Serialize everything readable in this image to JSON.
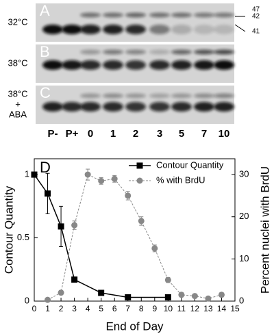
{
  "blot": {
    "panels": [
      {
        "letter": "A",
        "condition": [
          "32°C"
        ]
      },
      {
        "letter": "B",
        "condition": [
          "38°C"
        ]
      },
      {
        "letter": "C",
        "condition": [
          "38°C",
          "+",
          "ABA"
        ]
      }
    ],
    "markers": [
      "47",
      "42",
      "41"
    ],
    "lanes": [
      "P-",
      "P+",
      "0",
      "1",
      "2",
      "3",
      "5",
      "7",
      "10"
    ]
  },
  "chart_data": {
    "type": "line",
    "panel_letter": "D",
    "x_label": "End of Day",
    "y_label": "Contour Quantity",
    "y2_label": "Percent nuclei with BrdU",
    "xlim": [
      0,
      15
    ],
    "xticks": [
      0,
      1,
      2,
      3,
      4,
      5,
      6,
      7,
      8,
      9,
      10,
      11,
      12,
      13,
      14,
      15
    ],
    "ylim": [
      0,
      1.125
    ],
    "yticks": [
      0,
      0.5,
      1
    ],
    "y2lim": [
      0,
      33.75
    ],
    "y2ticks": [
      0,
      10,
      20,
      30
    ],
    "legend": "upper right",
    "series": [
      {
        "name": "Contour Quantity",
        "color": "#000000",
        "marker": "square",
        "dash": false,
        "x": [
          0,
          1,
          2,
          3,
          5,
          7,
          10
        ],
        "values": [
          1.0,
          0.85,
          0.59,
          0.17,
          0.065,
          0.03,
          0.03
        ],
        "errors": [
          0,
          0.16,
          0.16,
          0.02,
          0.01,
          0.01,
          0.01
        ]
      },
      {
        "name": "% with BrdU",
        "color": "#888888",
        "marker": "circle",
        "dash": true,
        "axis": "y2",
        "x": [
          1,
          2,
          3,
          4,
          5,
          6,
          7,
          8,
          9,
          10,
          11,
          12,
          13,
          14
        ],
        "values": [
          0.3,
          2,
          18,
          30,
          28.5,
          29,
          25,
          19,
          12.5,
          5,
          1.5,
          1.2,
          0.6,
          1.5
        ],
        "errors": [
          0.3,
          0.5,
          1,
          1.3,
          0.8,
          0.8,
          1,
          1,
          0.8,
          0.6,
          0.5,
          0.5,
          0.5,
          0.5
        ]
      }
    ]
  }
}
